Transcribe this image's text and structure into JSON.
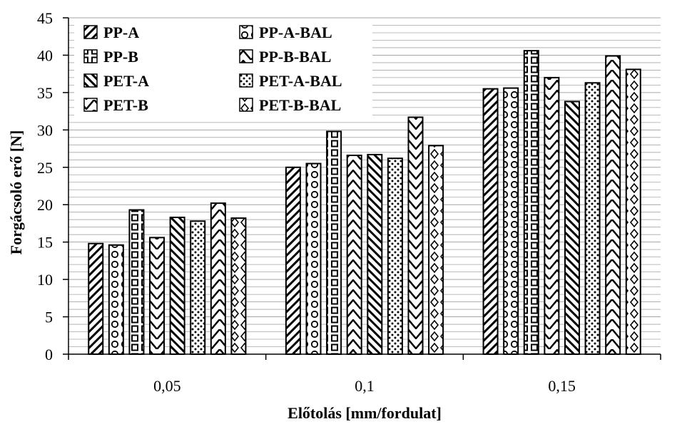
{
  "chart_data": {
    "type": "bar",
    "categories": [
      "0,05",
      "0,1",
      "0,15"
    ],
    "series": [
      {
        "name": "PP-A",
        "pattern": "diagonal-right",
        "values": [
          14.8,
          25.0,
          35.5
        ]
      },
      {
        "name": "PP-A-BAL",
        "pattern": "circles",
        "values": [
          14.6,
          25.5,
          35.6
        ]
      },
      {
        "name": "PP-B",
        "pattern": "squares",
        "values": [
          19.3,
          29.8,
          40.6
        ]
      },
      {
        "name": "PP-B-BAL",
        "pattern": "chevron-up",
        "values": [
          15.6,
          26.6,
          37.0
        ]
      },
      {
        "name": "PET-A",
        "pattern": "diagonal-left",
        "values": [
          18.3,
          26.7,
          33.8
        ]
      },
      {
        "name": "PET-A-BAL",
        "pattern": "dots",
        "values": [
          17.8,
          26.2,
          36.3
        ]
      },
      {
        "name": "PET-B",
        "pattern": "chevron-down",
        "values": [
          20.2,
          31.7,
          39.9
        ]
      },
      {
        "name": "PET-B-BAL",
        "pattern": "diamonds",
        "values": [
          18.2,
          27.9,
          38.1
        ]
      }
    ],
    "xlabel": "Előtolás [mm/fordulat]",
    "ylabel": "Forgácsoló erő  [N]",
    "ylim": [
      0,
      45
    ],
    "yticks": [
      "0",
      "5",
      "10",
      "15",
      "20",
      "25",
      "30",
      "35",
      "40",
      "45"
    ],
    "grid": "horizontal",
    "legend_position": "top-left",
    "colors": {
      "bar_fill": "#ffffff",
      "bar_pattern": "#000000",
      "grid": "#a6a6a6",
      "axis": "#000000"
    }
  }
}
